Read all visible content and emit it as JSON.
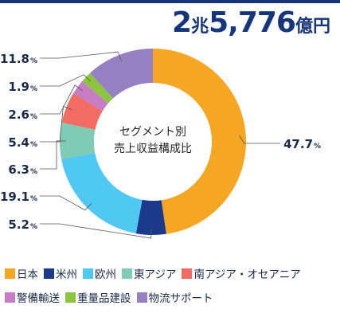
{
  "total": {
    "number": "2",
    "unit1": "兆",
    "number2": "5,776",
    "unit2": "億円"
  },
  "center_label": {
    "line1": "セグメント別",
    "line2": "売上収益構成比"
  },
  "chart_data": {
    "type": "pie",
    "donut": true,
    "title": "セグメント別 売上収益構成比",
    "total": "2兆5,776億円",
    "unit": "%",
    "categories": [
      "日本",
      "米州",
      "欧州",
      "東アジア",
      "南アジア・オセアニア",
      "警備輸送",
      "重量品建設",
      "物流サポート"
    ],
    "values": [
      47.7,
      5.2,
      19.1,
      6.3,
      5.4,
      2.6,
      1.9,
      11.8
    ],
    "labels": [
      "47.7",
      "5.2",
      "19.1",
      "6.3",
      "5.4",
      "2.6",
      "1.9",
      "11.8"
    ],
    "colors": [
      "#f5a623",
      "#1b3a8c",
      "#4fc8f2",
      "#7fcbb4",
      "#f26c64",
      "#c77dc3",
      "#8cc63e",
      "#9580c2"
    ],
    "legend_position": "bottom"
  }
}
